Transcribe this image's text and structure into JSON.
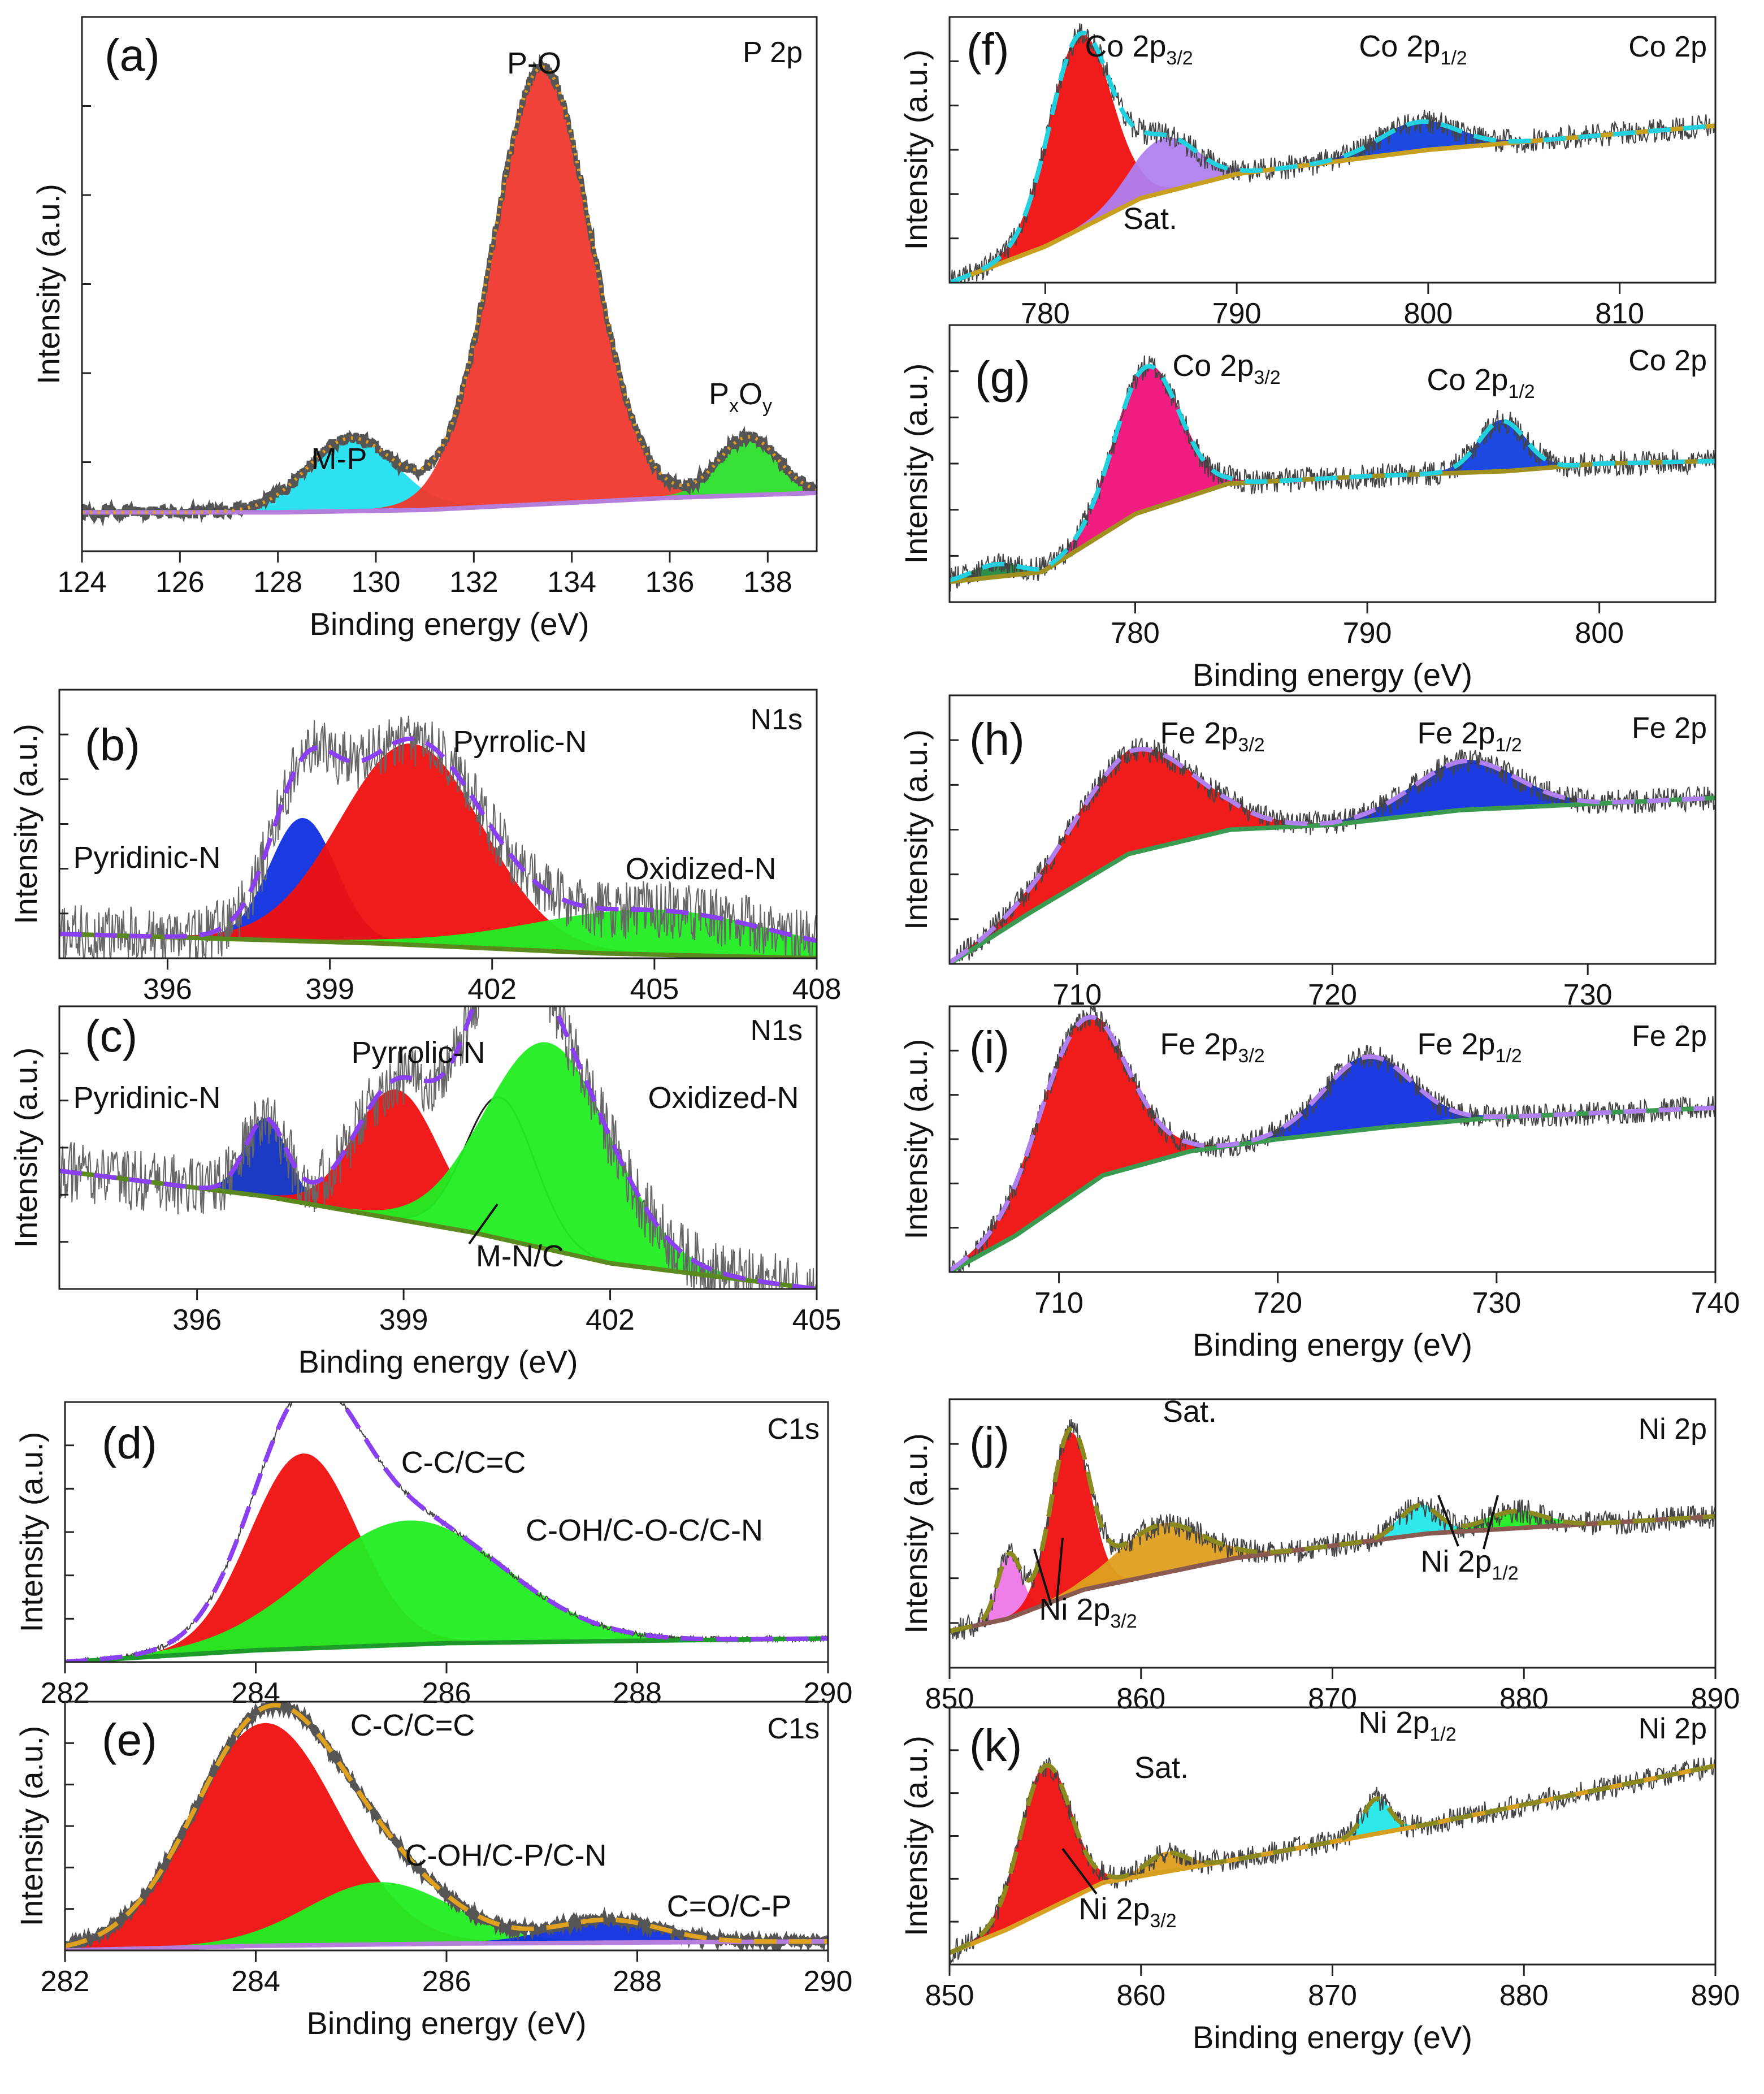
{
  "chart_data": [
    {
      "panel": "(a)",
      "type": "line",
      "corner_label": "P 2p",
      "xlabel": "Binding energy (eV)",
      "ylabel": "Intensity (a.u.)",
      "xlim": [
        124,
        139
      ],
      "xticks": [
        124,
        126,
        128,
        130,
        132,
        134,
        136,
        138
      ],
      "ylim": [
        0,
        1.1
      ],
      "background": {
        "color": "#b57edc",
        "points": [
          [
            124,
            0.08
          ],
          [
            128,
            0.08
          ],
          [
            131,
            0.085
          ],
          [
            134,
            0.1
          ],
          [
            136,
            0.11
          ],
          [
            139,
            0.12
          ]
        ]
      },
      "peaks": [
        {
          "label": "M-P",
          "center": 129.5,
          "height": 0.15,
          "sigma": 0.9,
          "color": "#22e0f0"
        },
        {
          "label": "P-O",
          "center": 133.4,
          "height": 0.9,
          "sigma": 1.0,
          "color": "#f0382e"
        },
        {
          "label": "PxOy",
          "label_main": "P",
          "label_sub1": "x",
          "label_mid": "O",
          "label_sub2": "y",
          "center": 137.6,
          "height": 0.12,
          "sigma": 0.6,
          "color": "#2ee02e"
        }
      ],
      "envelope_color": "#e09a20",
      "raw_color": "#555555"
    },
    {
      "panel": "(b)",
      "type": "line",
      "corner_label": "N1s",
      "xlabel": "",
      "ylabel": "Intensity (a.u.)",
      "xlim": [
        394,
        408
      ],
      "xticks": [
        396,
        399,
        402,
        405,
        408
      ],
      "ylim": [
        0,
        1.1
      ],
      "background": {
        "color": "#5a8a1e",
        "points": [
          [
            394,
            0.1
          ],
          [
            400,
            0.06
          ],
          [
            404,
            0.02
          ],
          [
            408,
            0.0
          ]
        ]
      },
      "peaks": [
        {
          "label": "Pyridinic-N",
          "center": 398.5,
          "height": 0.5,
          "sigma": 0.6,
          "color": "#1030e0"
        },
        {
          "label": "Pyrrolic-N",
          "center": 400.5,
          "height": 0.82,
          "sigma": 1.3,
          "color": "#f01010"
        },
        {
          "label": "Oxidized-N",
          "center": 405,
          "height": 0.18,
          "sigma": 2.2,
          "color": "#22ee22"
        }
      ],
      "envelope_color": "#8a40f0",
      "raw_color": "#666666"
    },
    {
      "panel": "(c)",
      "type": "line",
      "corner_label": "N1s",
      "xlabel": "Binding energy (eV)",
      "ylabel": "Intensity (a.u.)",
      "xlim": [
        394,
        405
      ],
      "xticks": [
        396,
        399,
        402,
        405
      ],
      "ylim": [
        0,
        1.1
      ],
      "background": {
        "color": "#5a8a1e",
        "points": [
          [
            394,
            0.46
          ],
          [
            397,
            0.36
          ],
          [
            400,
            0.22
          ],
          [
            402,
            0.1
          ],
          [
            405,
            0.0
          ]
        ]
      },
      "peaks": [
        {
          "label": "Pyridinic-N",
          "center": 397.0,
          "height": 0.3,
          "sigma": 0.3,
          "color": "#1030c0"
        },
        {
          "label": "Pyrrolic-N",
          "center": 398.9,
          "height": 0.5,
          "sigma": 0.6,
          "color": "#f01010"
        },
        {
          "label": "M-N/C",
          "center": 400.4,
          "height": 0.55,
          "sigma": 0.5,
          "color": "#ffffff"
        },
        {
          "label": "Oxidized-N",
          "center": 401.1,
          "height": 0.8,
          "sigma": 0.9,
          "color": "#22ee22"
        }
      ],
      "envelope_color": "#8a40f0",
      "raw_color": "#666666"
    },
    {
      "panel": "(d)",
      "type": "line",
      "corner_label": "C1s",
      "xlabel": "",
      "ylabel": "Intensity (a.u.)",
      "xlim": [
        282,
        290
      ],
      "xticks": [
        282,
        284,
        286,
        288,
        290
      ],
      "ylim": [
        0,
        1.1
      ],
      "background": {
        "color": "#1e9a2a",
        "points": [
          [
            282,
            0.0
          ],
          [
            284,
            0.05
          ],
          [
            286,
            0.08
          ],
          [
            290,
            0.1
          ]
        ]
      },
      "peaks": [
        {
          "label": "C-C/C=C",
          "center": 284.5,
          "height": 0.82,
          "sigma": 0.55,
          "color": "#f01010"
        },
        {
          "label": "C-OH/C-O-C/C-N",
          "center": 285.6,
          "height": 0.52,
          "sigma": 1.0,
          "color": "#22ee22"
        }
      ],
      "envelope_color": "#8a40f0",
      "raw_color": "#444444"
    },
    {
      "panel": "(e)",
      "type": "line",
      "corner_label": "C1s",
      "xlabel": "Binding energy (eV)",
      "ylabel": "Intensity (a.u.)",
      "xlim": [
        282,
        290
      ],
      "xticks": [
        282,
        284,
        286,
        288,
        290
      ],
      "ylim": [
        0,
        1.1
      ],
      "background": {
        "color": "#b57edc",
        "points": [
          [
            282,
            0.0
          ],
          [
            284,
            0.02
          ],
          [
            286,
            0.03
          ],
          [
            290,
            0.04
          ]
        ]
      },
      "peaks": [
        {
          "label": "C-C/C=C",
          "center": 284.1,
          "height": 0.98,
          "sigma": 0.75,
          "color": "#f01010"
        },
        {
          "label": "C-OH/C-P/C-N",
          "center": 285.3,
          "height": 0.27,
          "sigma": 0.75,
          "color": "#22ee22"
        },
        {
          "label": "C=O/C-P",
          "center": 287.7,
          "height": 0.1,
          "sigma": 0.55,
          "color": "#1030e0"
        }
      ],
      "envelope_color": "#e0a020",
      "raw_color": "#555555"
    },
    {
      "panel": "(f)",
      "type": "line",
      "corner_label": "Co 2p",
      "xlabel": "",
      "ylabel": "Intensity (a.u.)",
      "xlim": [
        775,
        815
      ],
      "xticks": [
        780,
        790,
        800,
        810
      ],
      "ylim": [
        0,
        1.1
      ],
      "background": {
        "color": "#c8a020",
        "points": [
          [
            775,
            0.0
          ],
          [
            780,
            0.15
          ],
          [
            785,
            0.35
          ],
          [
            790,
            0.45
          ],
          [
            800,
            0.55
          ],
          [
            815,
            0.65
          ]
        ]
      },
      "peaks": [
        {
          "label": "Co 2p3/2",
          "label_main": "Co 2p",
          "label_sub": "3/2",
          "center": 781.8,
          "height": 0.8,
          "sigma": 1.6,
          "color": "#f01010"
        },
        {
          "label": "Sat.",
          "center": 786.2,
          "height": 0.22,
          "sigma": 1.7,
          "color": "#b080f0"
        },
        {
          "label": "Co 2p1/2",
          "label_main": "Co 2p",
          "label_sub": "1/2",
          "center": 799.5,
          "height": 0.12,
          "sigma": 2.0,
          "color": "#1040e0"
        }
      ],
      "envelope_color": "#22d0e0",
      "raw_color": "#444444"
    },
    {
      "panel": "(g)",
      "type": "line",
      "corner_label": "Co 2p",
      "xlabel": "Binding energy (eV)",
      "ylabel": "Intensity (a.u.)",
      "xlim": [
        772,
        805
      ],
      "xticks": [
        780,
        790,
        800
      ],
      "ylim": [
        0,
        1.1
      ],
      "background": {
        "color": "#a09020",
        "points": [
          [
            772,
            0.08
          ],
          [
            776,
            0.12
          ],
          [
            780,
            0.35
          ],
          [
            784,
            0.47
          ],
          [
            790,
            0.5
          ],
          [
            796,
            0.52
          ],
          [
            800,
            0.55
          ],
          [
            805,
            0.56
          ]
        ]
      },
      "peaks": [
        {
          "label": "",
          "center": 774.0,
          "height": 0.05,
          "sigma": 1.0,
          "color": "#208a40"
        },
        {
          "label": "Co 2p3/2",
          "label_main": "Co 2p",
          "label_sub": "3/2",
          "center": 780.5,
          "height": 0.57,
          "sigma": 1.4,
          "color": "#f0107a"
        },
        {
          "label": "Co 2p1/2",
          "label_main": "Co 2p",
          "label_sub": "1/2",
          "center": 795.8,
          "height": 0.2,
          "sigma": 1.0,
          "color": "#1040e0"
        }
      ],
      "envelope_color": "#22d0e0",
      "raw_color": "#444444"
    },
    {
      "panel": "(h)",
      "type": "line",
      "corner_label": "Fe 2p",
      "xlabel": "",
      "ylabel": "Intensity (a.u.)",
      "xlim": [
        705,
        735
      ],
      "xticks": [
        710,
        720,
        730
      ],
      "ylim": [
        0,
        1.1
      ],
      "background": {
        "color": "#3a9a50",
        "points": [
          [
            705,
            0.0
          ],
          [
            708,
            0.2
          ],
          [
            712,
            0.45
          ],
          [
            716,
            0.55
          ],
          [
            720,
            0.57
          ],
          [
            725,
            0.63
          ],
          [
            735,
            0.68
          ]
        ]
      },
      "peaks": [
        {
          "label": "Fe 2p3/2",
          "label_main": "Fe 2p",
          "label_sub": "3/2",
          "center": 712.2,
          "height": 0.42,
          "sigma": 2.4,
          "color": "#f01010"
        },
        {
          "label": "Fe 2p1/2",
          "label_main": "Fe 2p",
          "label_sub": "1/2",
          "center": 725.2,
          "height": 0.2,
          "sigma": 2.0,
          "color": "#1030e0"
        }
      ],
      "envelope_color": "#b080f0",
      "raw_color": "#444444"
    },
    {
      "panel": "(i)",
      "type": "line",
      "corner_label": "Fe 2p",
      "xlabel": "Binding energy (eV)",
      "ylabel": "Intensity (a.u.)",
      "xlim": [
        705,
        740
      ],
      "xticks": [
        710,
        720,
        730,
        740
      ],
      "ylim": [
        0,
        1.1
      ],
      "background": {
        "color": "#3a9a50",
        "points": [
          [
            705,
            0.0
          ],
          [
            708,
            0.15
          ],
          [
            712,
            0.4
          ],
          [
            716,
            0.5
          ],
          [
            720,
            0.55
          ],
          [
            725,
            0.6
          ],
          [
            730,
            0.64
          ],
          [
            740,
            0.68
          ]
        ]
      },
      "peaks": [
        {
          "label": "Fe 2p3/2",
          "label_main": "Fe 2p",
          "label_sub": "3/2",
          "center": 711.1,
          "height": 0.7,
          "sigma": 2.0,
          "color": "#f01010"
        },
        {
          "label": "Fe 2p1/2",
          "label_main": "Fe 2p",
          "label_sub": "1/2",
          "center": 724.1,
          "height": 0.3,
          "sigma": 2.0,
          "color": "#1030e0"
        }
      ],
      "envelope_color": "#b080f0",
      "raw_color": "#444444"
    },
    {
      "panel": "(j)",
      "type": "line",
      "corner_label": "Ni 2p",
      "xlabel": "",
      "ylabel": "Intensity (a.u.)",
      "xlim": [
        850,
        890
      ],
      "xticks": [
        850,
        860,
        870,
        880,
        890
      ],
      "ylim": [
        0,
        1.1
      ],
      "background": {
        "color": "#8a5a50",
        "points": [
          [
            850,
            0.15
          ],
          [
            853,
            0.2
          ],
          [
            857,
            0.32
          ],
          [
            865,
            0.45
          ],
          [
            875,
            0.55
          ],
          [
            890,
            0.62
          ]
        ]
      },
      "peaks": [
        {
          "label": "",
          "center": 853.1,
          "height": 0.26,
          "sigma": 0.6,
          "color": "#f078e8"
        },
        {
          "label": "Ni 2p3/2",
          "label_main": "Ni 2p",
          "label_sub": "3/2",
          "center": 856.3,
          "height": 0.66,
          "sigma": 1.0,
          "color": "#f01010"
        },
        {
          "label": "Sat.",
          "center": 861.0,
          "height": 0.2,
          "sigma": 2.2,
          "color": "#e0a020"
        },
        {
          "label": "Ni 2p1/2",
          "label_main": "Ni 2p",
          "label_sub": "1/2",
          "center": 874.5,
          "height": 0.12,
          "sigma": 1.0,
          "color": "#22e8e8"
        },
        {
          "label": "",
          "center": 879.5,
          "height": 0.07,
          "sigma": 1.5,
          "color": "#22ee22"
        }
      ],
      "envelope_color": "#8a8a20",
      "raw_color": "#444444"
    },
    {
      "panel": "(k)",
      "type": "line",
      "corner_label": "Ni 2p",
      "xlabel": "Binding energy (eV)",
      "ylabel": "Intensity (a.u.)",
      "xlim": [
        850,
        890
      ],
      "xticks": [
        850,
        860,
        870,
        880,
        890
      ],
      "ylim": [
        0,
        1.1
      ],
      "background": {
        "color": "#d8a020",
        "points": [
          [
            850,
            0.05
          ],
          [
            853,
            0.15
          ],
          [
            858,
            0.35
          ],
          [
            865,
            0.45
          ],
          [
            875,
            0.6
          ],
          [
            890,
            0.85
          ]
        ]
      },
      "peaks": [
        {
          "label": "Ni 2p3/2",
          "label_main": "Ni 2p",
          "label_sub": "3/2",
          "center": 855.0,
          "height": 0.62,
          "sigma": 1.3,
          "color": "#f01010"
        },
        {
          "label": "Sat.",
          "center": 861.3,
          "height": 0.08,
          "sigma": 1.0,
          "color": "#e0a020"
        },
        {
          "label": "Ni 2p1/2",
          "label_main": "Ni 2p",
          "label_sub": "1/2",
          "center": 872.3,
          "height": 0.15,
          "sigma": 0.7,
          "color": "#22e8e8"
        }
      ],
      "envelope_color": "#8a8a20",
      "raw_color": "#444444"
    }
  ]
}
